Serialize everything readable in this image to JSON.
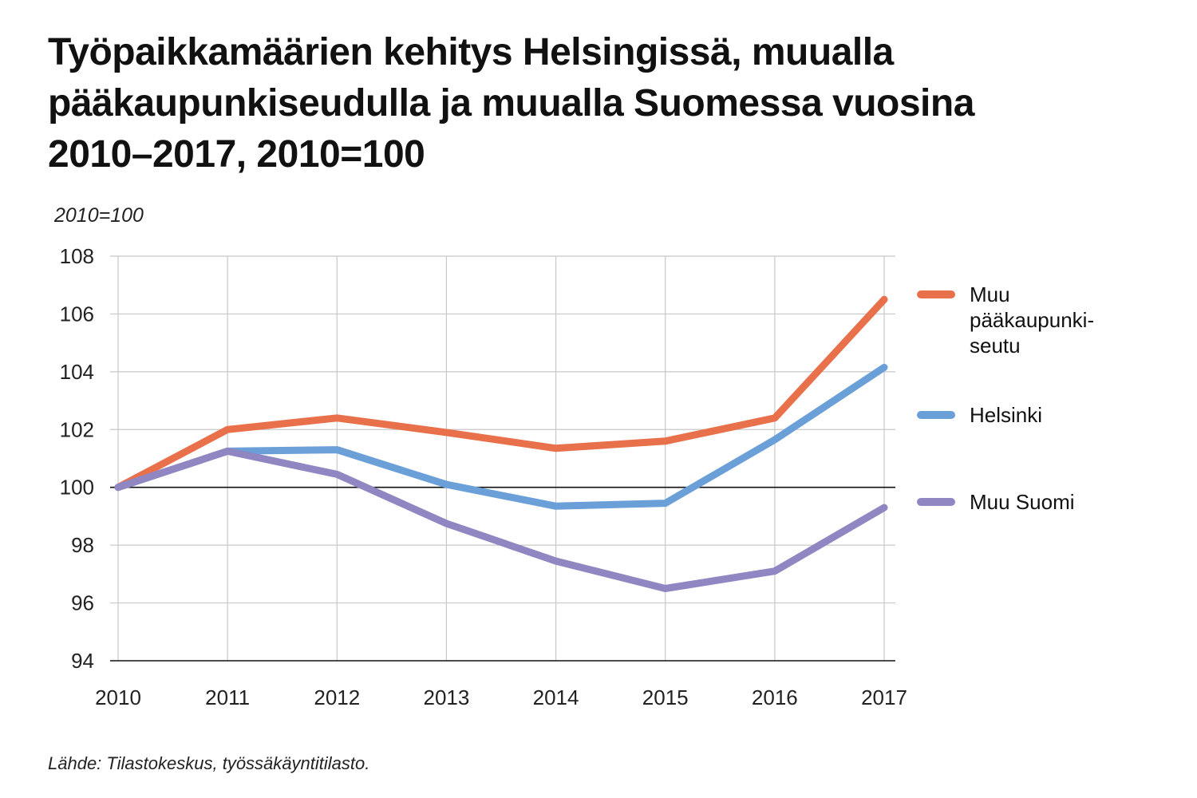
{
  "title": "Työpaikkamäärien kehitys Helsingissä, muualla pääkaupunkiseudulla ja muualla Suomessa vuosina 2010–2017, 2010=100",
  "unit_label": "2010=100",
  "source": "Lähde: Tilastokeskus, työssäkäyntitilasto.",
  "chart_data": {
    "type": "line",
    "title": "Työpaikkamäärien kehitys Helsingissä, muualla pääkaupunkiseudulla ja muualla Suomessa vuosina 2010–2017, 2010=100",
    "xlabel": "",
    "ylabel": "2010=100",
    "x": [
      "2010",
      "2011",
      "2012",
      "2013",
      "2014",
      "2015",
      "2016",
      "2017"
    ],
    "ylim": [
      94,
      108
    ],
    "yticks": [
      94,
      96,
      98,
      100,
      102,
      104,
      106,
      108
    ],
    "reference_line": 100,
    "grid": true,
    "legend_position": "right",
    "series": [
      {
        "name": "Muu pääkaupunki-seutu",
        "legend_lines": [
          "Muu",
          "pääkaupunki-",
          "seutu"
        ],
        "color": "#E8714B",
        "values": [
          100.0,
          102.0,
          102.4,
          101.9,
          101.35,
          101.6,
          102.4,
          106.5
        ]
      },
      {
        "name": "Helsinki",
        "legend_lines": [
          "Helsinki"
        ],
        "color": "#6A9FD8",
        "values": [
          100.0,
          101.25,
          101.3,
          100.1,
          99.35,
          99.45,
          101.65,
          104.15
        ]
      },
      {
        "name": "Muu Suomi",
        "legend_lines": [
          "Muu Suomi"
        ],
        "color": "#8F86C2",
        "values": [
          100.0,
          101.25,
          100.45,
          98.75,
          97.45,
          96.5,
          97.1,
          99.3
        ]
      }
    ]
  }
}
